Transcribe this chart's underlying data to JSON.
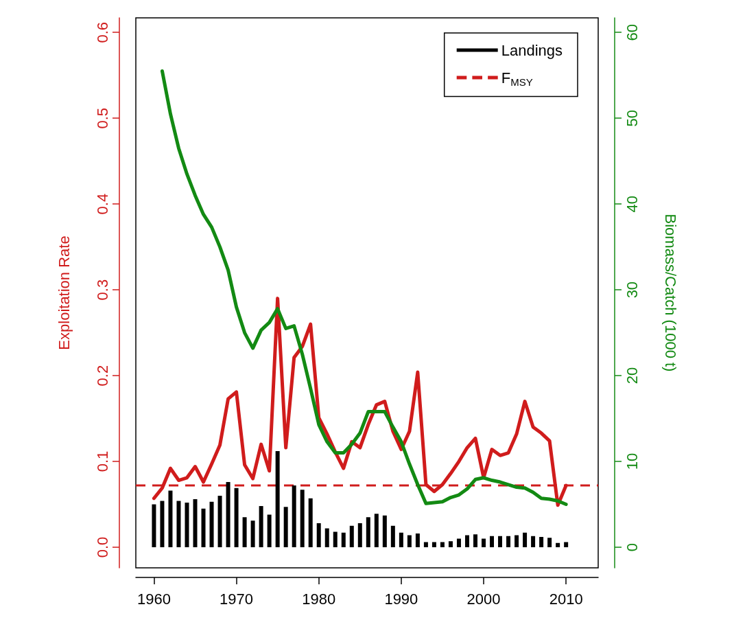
{
  "chart_data": {
    "type": "line",
    "ylabel": "Exploitation Rate",
    "y2label": "Biomass/Catch (1000 t)",
    "x": [
      1960,
      1961,
      1962,
      1963,
      1964,
      1965,
      1966,
      1967,
      1968,
      1969,
      1970,
      1971,
      1972,
      1973,
      1974,
      1975,
      1976,
      1977,
      1978,
      1979,
      1980,
      1981,
      1982,
      1983,
      1984,
      1985,
      1986,
      1987,
      1988,
      1989,
      1990,
      1991,
      1992,
      1993,
      1994,
      1995,
      1996,
      1997,
      1998,
      1999,
      2000,
      2001,
      2002,
      2003,
      2004,
      2005,
      2006,
      2007,
      2008,
      2009,
      2010
    ],
    "series": [
      {
        "name": "Landings",
        "type": "bar",
        "axis": "y2",
        "color": "#000000",
        "values": [
          5.0,
          5.4,
          6.6,
          5.4,
          5.2,
          5.6,
          4.5,
          5.3,
          6.0,
          7.6,
          6.9,
          3.5,
          3.1,
          4.8,
          3.8,
          11.2,
          4.7,
          7.2,
          6.7,
          5.7,
          2.8,
          2.2,
          1.8,
          1.7,
          2.5,
          2.8,
          3.5,
          3.9,
          3.7,
          2.5,
          1.7,
          1.4,
          1.6,
          0.6,
          0.6,
          0.6,
          0.7,
          1.0,
          1.4,
          1.5,
          1.0,
          1.3,
          1.3,
          1.3,
          1.4,
          1.7,
          1.3,
          1.2,
          1.1,
          0.5,
          0.6
        ]
      },
      {
        "axis": "y",
        "color": "#d01c1c",
        "values": [
          0.057,
          0.069,
          0.092,
          0.078,
          0.081,
          0.094,
          0.076,
          0.097,
          0.119,
          0.173,
          0.181,
          0.096,
          0.08,
          0.12,
          0.089,
          0.29,
          0.116,
          0.221,
          0.234,
          0.26,
          0.151,
          0.132,
          0.111,
          0.092,
          0.123,
          0.116,
          0.143,
          0.166,
          0.17,
          0.135,
          0.114,
          0.135,
          0.204,
          0.073,
          0.065,
          0.073,
          0.086,
          0.1,
          0.116,
          0.127,
          0.081,
          0.114,
          0.107,
          0.11,
          0.132,
          0.17,
          0.14,
          0.133,
          0.124,
          0.049,
          0.072
        ]
      },
      {
        "type": "line",
        "axis": "y2",
        "color": "#138a13",
        "x": [
          1961,
          1962,
          1963,
          1964,
          1965,
          1966,
          1967,
          1968,
          1969,
          1970,
          1971,
          1972,
          1973,
          1974,
          1975,
          1976,
          1977,
          1978,
          1979,
          1980,
          1981,
          1982,
          1983,
          1984,
          1985,
          1986,
          1987,
          1988,
          1989,
          1990,
          1991,
          1992,
          1993,
          1994,
          1995,
          1996,
          1997,
          1998,
          1999,
          2000,
          2001,
          2002,
          2003,
          2004,
          2005,
          2006,
          2007,
          2008,
          2009,
          2010
        ],
        "values": [
          55.5,
          50.5,
          46.5,
          43.5,
          41,
          38.8,
          37.3,
          35,
          32.3,
          28,
          25,
          23.2,
          25.3,
          26.2,
          27.8,
          25.5,
          25.8,
          22.5,
          18.5,
          14.3,
          12.3,
          11,
          11,
          12,
          13.3,
          15.8,
          15.8,
          15.8,
          14,
          12.3,
          9.7,
          7.3,
          5.1,
          5.2,
          5.3,
          5.8,
          6.1,
          6.8,
          7.9,
          8.1,
          7.8,
          7.6,
          7.3,
          7.0,
          6.9,
          6.4,
          5.7,
          5.6,
          5.4,
          5.0
        ]
      }
    ],
    "ref_lines": [
      {
        "axis": "y",
        "value": 0.072,
        "label": "F$_{MSY}$",
        "color": "#d01c1c",
        "line_style": "dashed"
      }
    ],
    "xlim": [
      1957.8,
      2013.9
    ],
    "xticks": [
      1960,
      1970,
      1980,
      1990,
      2000,
      2010
    ],
    "ylim": [
      -0.024,
      0.617
    ],
    "yticks": [
      {
        "value": 0,
        "label": "0.0"
      },
      0.1,
      0.2,
      0.3,
      0.4,
      0.5,
      0.6
    ],
    "y2lim": [
      -2.4,
      61.7
    ],
    "y2ticks": [
      0,
      10,
      20,
      30,
      40,
      50,
      60
    ],
    "legend": "top right",
    "grid": false,
    "marker": "none",
    "line_style": "solid"
  }
}
